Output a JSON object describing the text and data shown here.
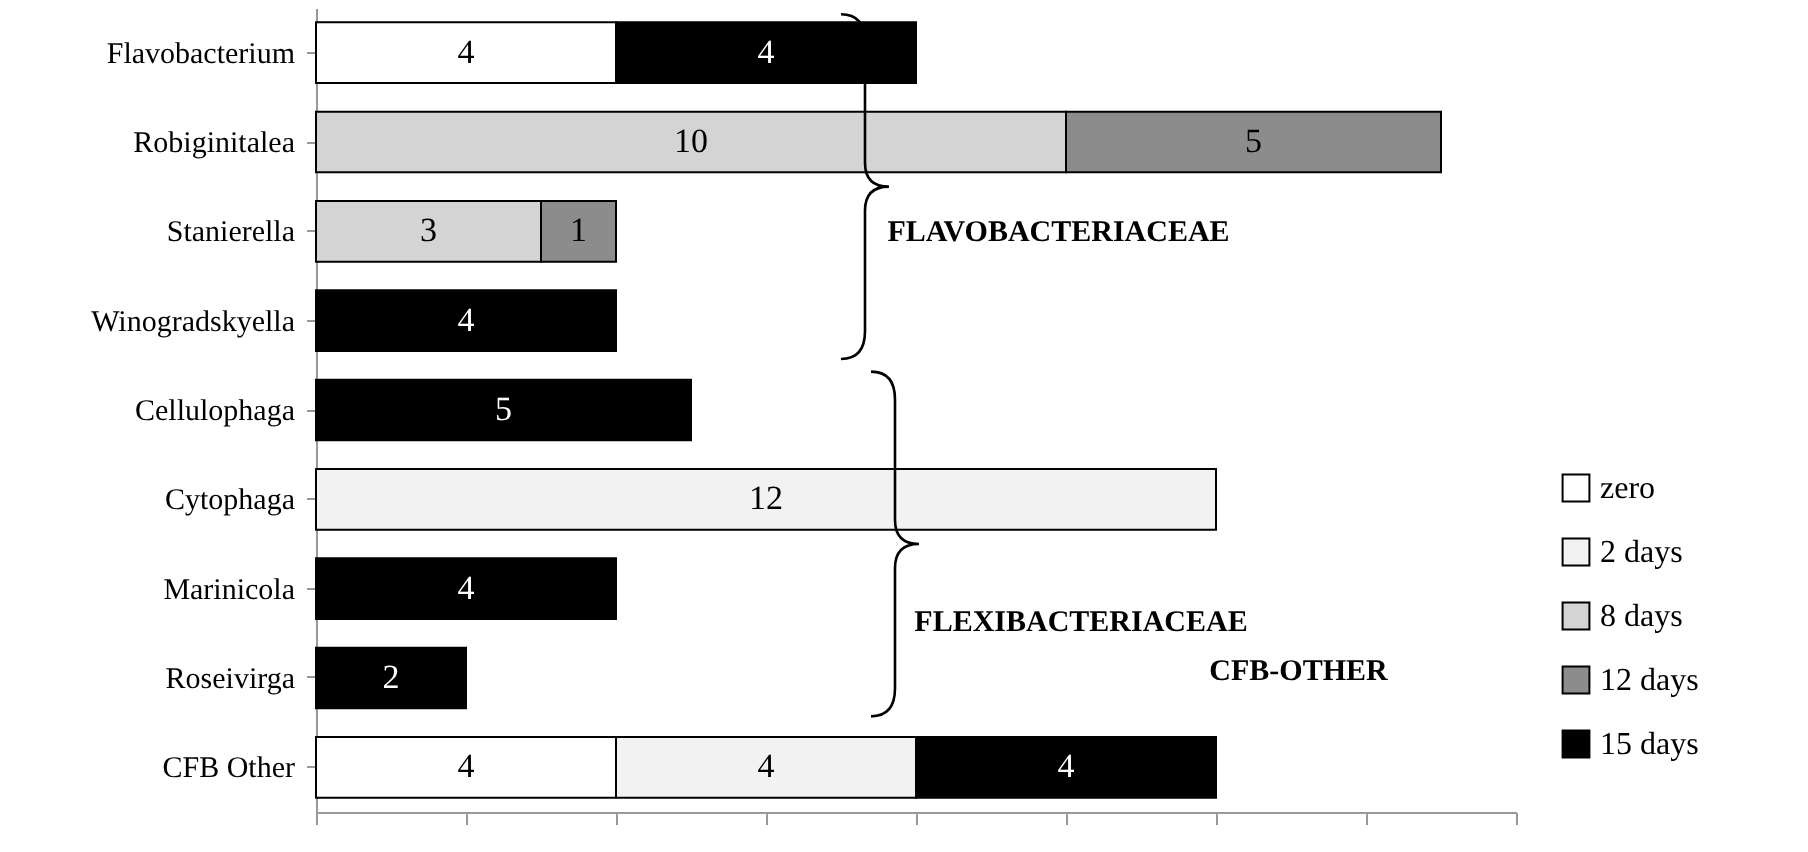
{
  "chart_data": {
    "type": "bar",
    "orientation": "horizontal",
    "stacked": true,
    "data_labels": true,
    "grid": false,
    "legend": "right",
    "tick_labels": "y",
    "categories": [
      "Flavobacterium",
      "Robiginitalea",
      "Stanierella",
      "Winogradskyella",
      "Cellulophaga",
      "Cytophaga",
      "Marinicola",
      "Roseivirga",
      "CFB Other"
    ],
    "series": [
      {
        "name": "zero",
        "color": "#ffffff",
        "values": [
          4,
          null,
          null,
          null,
          null,
          null,
          null,
          null,
          4
        ]
      },
      {
        "name": "2 days",
        "color": "#f2f2f2",
        "values": [
          null,
          null,
          null,
          null,
          null,
          12,
          null,
          null,
          4
        ]
      },
      {
        "name": "8 days",
        "color": "#d4d4d4",
        "values": [
          null,
          10,
          3,
          null,
          null,
          null,
          null,
          null,
          null
        ]
      },
      {
        "name": "12 days",
        "color": "#8c8c8c",
        "values": [
          null,
          5,
          1,
          null,
          null,
          null,
          null,
          null,
          null
        ]
      },
      {
        "name": "15 days",
        "color": "#000000",
        "values": [
          4,
          null,
          null,
          4,
          5,
          null,
          4,
          2,
          4
        ]
      }
    ],
    "xlim": [
      0,
      16
    ],
    "xticks": [
      {
        "value": 0,
        "label": null
      },
      {
        "value": 2,
        "label": null
      },
      {
        "value": 4,
        "label": null
      },
      {
        "value": 6,
        "label": null
      },
      {
        "value": 8,
        "label": null
      },
      {
        "value": 10,
        "label": null
      },
      {
        "value": 12,
        "label": null
      },
      {
        "value": 14,
        "label": null
      },
      {
        "value": 16,
        "label": null
      }
    ],
    "annotations": [
      "FLAVOBACTERIACEAE",
      "FLEXIBACTERIACEAE",
      "CFB-OTHER"
    ]
  }
}
